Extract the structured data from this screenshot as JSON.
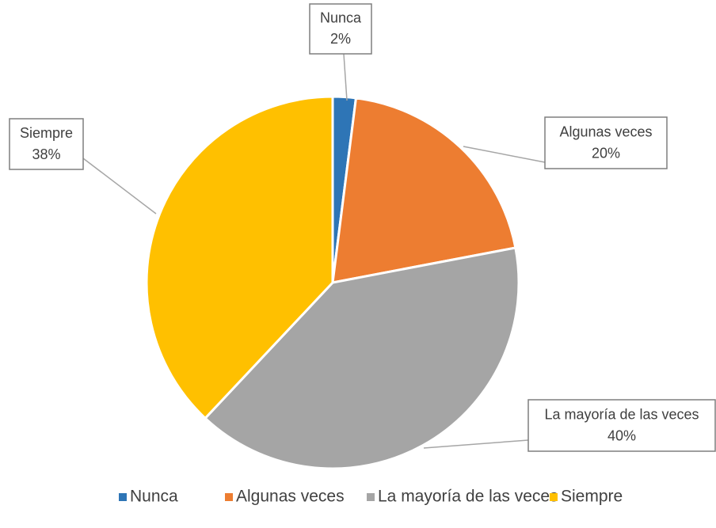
{
  "chart_data": {
    "type": "pie",
    "categories": [
      "Nunca",
      "Algunas veces",
      "La mayoría de las veces",
      "Siempre"
    ],
    "values": [
      2,
      20,
      40,
      38
    ],
    "value_labels": [
      "2%",
      "20%",
      "40%",
      "38%"
    ],
    "colors": [
      "#2e75b6",
      "#ed7d31",
      "#a5a5a5",
      "#ffc000"
    ],
    "legend": "bottom"
  }
}
